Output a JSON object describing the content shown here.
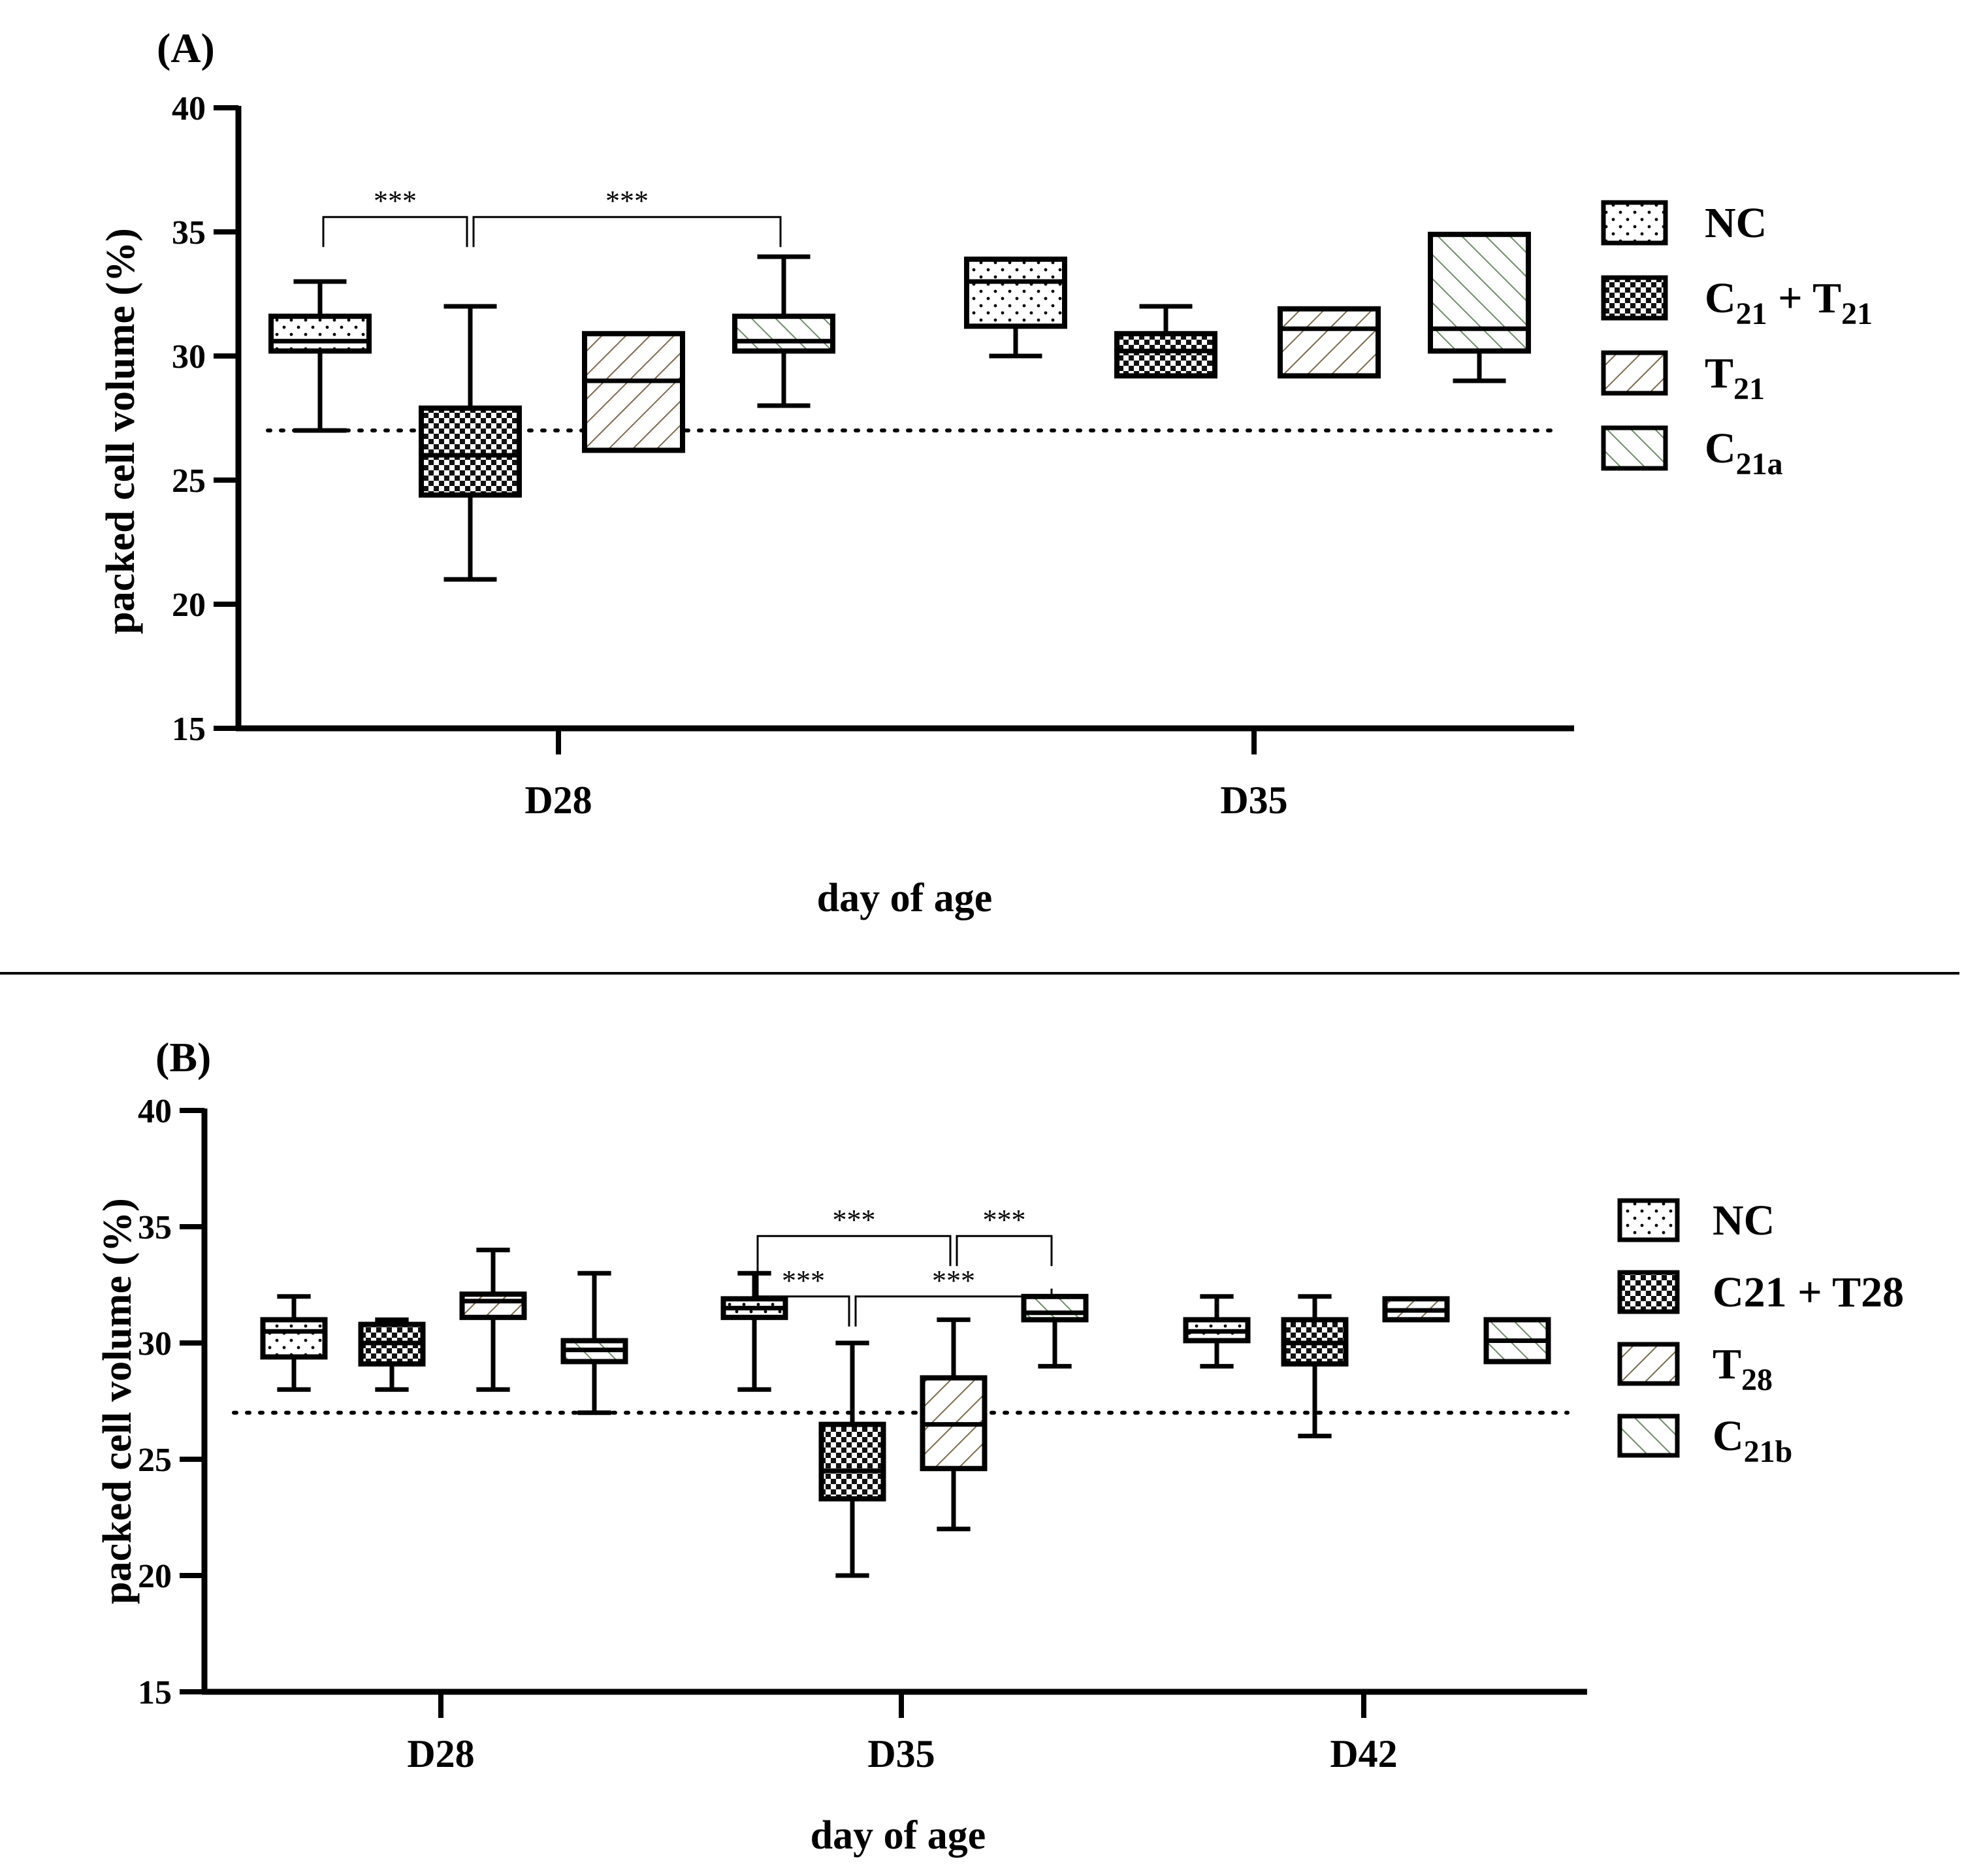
{
  "colors": {
    "ink": "#000000",
    "fill_tan": "#7a6a4f",
    "fill_green": "#6f8c6a",
    "background": "#ffffff"
  },
  "chart_data": [
    {
      "type": "box",
      "panel_label": "(A)",
      "title": "",
      "xlabel": "day of age",
      "ylabel": "packed cell volume (%)",
      "ylim": [
        15,
        40
      ],
      "yticks": [
        15,
        20,
        25,
        30,
        35,
        40
      ],
      "categories": [
        "D28",
        "D35"
      ],
      "reference_line": 27,
      "legend": {
        "position": "right",
        "entries": [
          {
            "series": "NC",
            "main": "NC",
            "sub": "",
            "mid": "",
            "sub2": ""
          },
          {
            "series": "C21 + T21",
            "main": "C",
            "sub": "21",
            "mid": " + T",
            "sub2": "21"
          },
          {
            "series": "T21",
            "main": "T",
            "sub": "21",
            "mid": "",
            "sub2": ""
          },
          {
            "series": "C21a",
            "main": "C",
            "sub": "21a",
            "mid": "",
            "sub2": ""
          }
        ]
      },
      "series": [
        {
          "name": "NC",
          "pattern": "dots",
          "boxes": [
            {
              "category": "D28",
              "min": 27,
              "q1": 30.2,
              "median": 30.6,
              "q3": 31.6,
              "max": 33
            },
            {
              "category": "D35",
              "min": 30,
              "q1": 31.2,
              "median": 33,
              "q3": 33.9,
              "max": 33.9
            }
          ]
        },
        {
          "name": "C21 + T21",
          "pattern": "checker",
          "boxes": [
            {
              "category": "D28",
              "min": 21,
              "q1": 24.4,
              "median": 26,
              "q3": 27.9,
              "max": 32
            },
            {
              "category": "D35",
              "min": 29.2,
              "q1": 29.2,
              "median": 30.2,
              "q3": 30.9,
              "max": 32
            }
          ]
        },
        {
          "name": "T21",
          "pattern": "hatch-up",
          "boxes": [
            {
              "category": "D28",
              "min": 26.2,
              "q1": 26.2,
              "median": 29,
              "q3": 30.9,
              "max": 30.9
            },
            {
              "category": "D35",
              "min": 29.2,
              "q1": 29.2,
              "median": 31.1,
              "q3": 31.9,
              "max": 31.9
            }
          ]
        },
        {
          "name": "C21a",
          "pattern": "hatch-down",
          "boxes": [
            {
              "category": "D28",
              "min": 28,
              "q1": 30.2,
              "median": 30.6,
              "q3": 31.6,
              "max": 34
            },
            {
              "category": "D35",
              "min": 29,
              "q1": 30.2,
              "median": 31.1,
              "q3": 34.9,
              "max": 34.9
            }
          ]
        }
      ],
      "significance": [
        {
          "label": "***",
          "from": [
            "D28",
            "NC"
          ],
          "to": [
            "D28",
            "C21 + T21"
          ],
          "y": 35.6
        },
        {
          "label": "***",
          "from": [
            "D28",
            "C21 + T21"
          ],
          "to": [
            "D28",
            "C21a"
          ],
          "y": 35.6
        }
      ]
    },
    {
      "type": "box",
      "panel_label": "(B)",
      "title": "",
      "xlabel": "day of age",
      "ylabel": "packed cell volume (%)",
      "ylim": [
        15,
        40
      ],
      "yticks": [
        15,
        20,
        25,
        30,
        35,
        40
      ],
      "categories": [
        "D28",
        "D35",
        "D42"
      ],
      "reference_line": 27,
      "legend": {
        "position": "right",
        "entries": [
          {
            "series": "NC",
            "main": "NC",
            "sub": "",
            "mid": "",
            "sub2": ""
          },
          {
            "series": "C21 + T28",
            "main": "C21 + T28",
            "sub": "",
            "mid": "",
            "sub2": ""
          },
          {
            "series": "T28",
            "main": "T",
            "sub": "28",
            "mid": "",
            "sub2": ""
          },
          {
            "series": "C21b",
            "main": "C",
            "sub": "21b",
            "mid": "",
            "sub2": ""
          }
        ]
      },
      "series": [
        {
          "name": "NC",
          "pattern": "dots",
          "boxes": [
            {
              "category": "D28",
              "min": 28,
              "q1": 29.4,
              "median": 30.5,
              "q3": 31,
              "max": 32
            },
            {
              "category": "D35",
              "min": 28,
              "q1": 31.1,
              "median": 31.5,
              "q3": 31.9,
              "max": 33
            },
            {
              "category": "D42",
              "min": 29,
              "q1": 30.1,
              "median": 30.5,
              "q3": 31,
              "max": 32
            }
          ]
        },
        {
          "name": "C21 + T28",
          "pattern": "checker",
          "boxes": [
            {
              "category": "D28",
              "min": 28,
              "q1": 29.1,
              "median": 30,
              "q3": 30.8,
              "max": 31
            },
            {
              "category": "D35",
              "min": 20,
              "q1": 23.3,
              "median": 24.5,
              "q3": 26.5,
              "max": 30
            },
            {
              "category": "D42",
              "min": 26,
              "q1": 29.1,
              "median": 30,
              "q3": 31,
              "max": 32
            }
          ]
        },
        {
          "name": "T28",
          "pattern": "hatch-up",
          "boxes": [
            {
              "category": "D28",
              "min": 28,
              "q1": 31.1,
              "median": 31.8,
              "q3": 32.1,
              "max": 34
            },
            {
              "category": "D35",
              "min": 22,
              "q1": 24.6,
              "median": 26.5,
              "q3": 28.5,
              "max": 31
            },
            {
              "category": "D42",
              "min": 31,
              "q1": 31,
              "median": 31.4,
              "q3": 31.9,
              "max": 31.9
            }
          ]
        },
        {
          "name": "C21b",
          "pattern": "hatch-down",
          "boxes": [
            {
              "category": "D28",
              "min": 27,
              "q1": 29.2,
              "median": 29.7,
              "q3": 30.1,
              "max": 33
            },
            {
              "category": "D35",
              "min": 29,
              "q1": 31,
              "median": 31.3,
              "q3": 32,
              "max": 32
            },
            {
              "category": "D42",
              "min": 29.2,
              "q1": 29.2,
              "median": 30.1,
              "q3": 31,
              "max": 31
            }
          ]
        }
      ],
      "significance": [
        {
          "label": "***",
          "from": [
            "D35",
            "NC"
          ],
          "to": [
            "D35",
            "T28"
          ],
          "y": 34.6
        },
        {
          "label": "***",
          "from": [
            "D35",
            "T28"
          ],
          "to": [
            "D35",
            "C21b"
          ],
          "y": 34.6
        },
        {
          "label": "***",
          "from": [
            "D35",
            "NC"
          ],
          "to": [
            "D35",
            "C21 + T28"
          ],
          "y": 32.0
        },
        {
          "label": "***",
          "from": [
            "D35",
            "C21 + T28"
          ],
          "to": [
            "D35",
            "C21b"
          ],
          "y": 32.0
        }
      ]
    }
  ]
}
